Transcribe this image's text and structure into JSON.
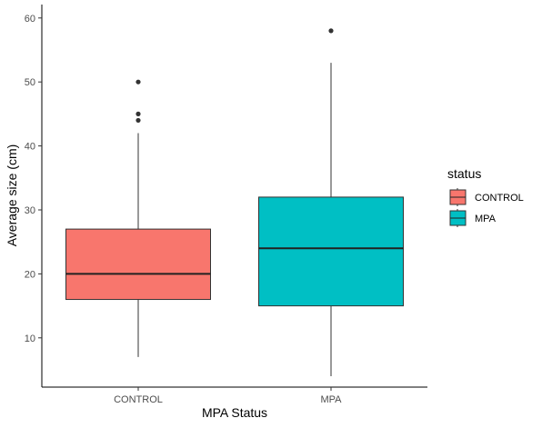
{
  "chart_data": {
    "type": "boxplot",
    "xlabel": "MPA Status",
    "ylabel": "Average size (cm)",
    "categories": [
      "CONTROL",
      "MPA"
    ],
    "yticks": [
      10,
      20,
      30,
      40,
      50,
      60
    ],
    "ylim": [
      2.3,
      62.1
    ],
    "grid": false,
    "legend": {
      "title": "status",
      "position": "right",
      "entries": [
        {
          "label": "CONTROL",
          "color": "#F8766D"
        },
        {
          "label": "MPA",
          "color": "#00BFC4"
        }
      ]
    },
    "series": [
      {
        "name": "CONTROL",
        "color": "#F8766D",
        "whisker_low": 7,
        "q1": 16,
        "median": 20,
        "q3": 27,
        "whisker_high": 42,
        "outliers": [
          44,
          45,
          50
        ]
      },
      {
        "name": "MPA",
        "color": "#00BFC4",
        "whisker_low": 4,
        "q1": 15,
        "median": 24,
        "q3": 32,
        "whisker_high": 53,
        "outliers": [
          58
        ]
      }
    ]
  }
}
